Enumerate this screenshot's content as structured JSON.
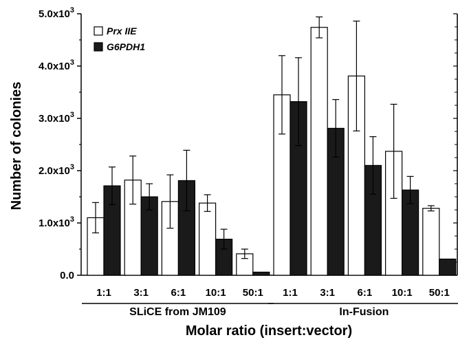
{
  "chart_data": {
    "type": "bar",
    "ylabel": "Number of colonies",
    "xlabel": "Molar ratio (insert:vector)",
    "ylim": [
      0,
      5000
    ],
    "yticks": [
      {
        "value": 0,
        "base": "0.0",
        "exp": ""
      },
      {
        "value": 1000,
        "base": "1.0x10",
        "exp": "3"
      },
      {
        "value": 2000,
        "base": "2.0x10",
        "exp": "3"
      },
      {
        "value": 3000,
        "base": "3.0x10",
        "exp": "3"
      },
      {
        "value": 4000,
        "base": "4.0x10",
        "exp": "3"
      },
      {
        "value": 5000,
        "base": "5.0x10",
        "exp": "3"
      }
    ],
    "grid": false,
    "legend_position": "top-left",
    "categories": [
      "1:1",
      "3:1",
      "6:1",
      "10:1",
      "50:1",
      "1:1",
      "3:1",
      "6:1",
      "10:1",
      "50:1"
    ],
    "groups": [
      {
        "label": "SLiCE from JM109",
        "categories": [
          0,
          1,
          2,
          3,
          4
        ]
      },
      {
        "label": "In-Fusion",
        "categories": [
          5,
          6,
          7,
          8,
          9
        ]
      }
    ],
    "series": [
      {
        "name": "Prx IIE",
        "color": "#ffffff",
        "values": [
          1100,
          1820,
          1410,
          1380,
          410,
          3450,
          4740,
          3810,
          2370,
          1280
        ],
        "errors": [
          290,
          460,
          510,
          160,
          90,
          750,
          200,
          1050,
          900,
          50
        ]
      },
      {
        "name": "G6PDH1",
        "color": "#1a1a1a",
        "values": [
          1710,
          1500,
          1810,
          690,
          60,
          3320,
          2810,
          2100,
          1630,
          310
        ],
        "errors": [
          360,
          250,
          580,
          190,
          0,
          840,
          550,
          550,
          260,
          0
        ]
      }
    ]
  }
}
